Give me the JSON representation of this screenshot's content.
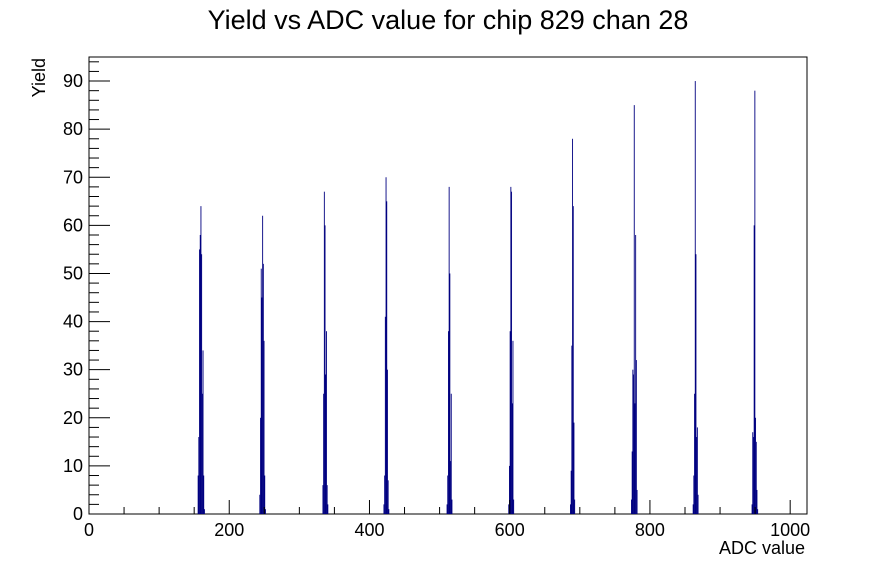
{
  "chart_data": {
    "type": "histogram",
    "title": "Yield vs ADC value for chip 829 chan 28",
    "xlabel": "ADC value",
    "ylabel": "Yield",
    "xlim": [
      0,
      1024
    ],
    "ylim": [
      0,
      95
    ],
    "x_ticks": [
      0,
      200,
      400,
      600,
      800,
      1000
    ],
    "y_ticks": [
      0,
      10,
      20,
      30,
      40,
      50,
      60,
      70,
      80,
      90
    ],
    "bar_color": "#000080",
    "bins": [
      {
        "x": 155,
        "y": 8
      },
      {
        "x": 156,
        "y": 16
      },
      {
        "x": 157,
        "y": 55
      },
      {
        "x": 158,
        "y": 58
      },
      {
        "x": 159,
        "y": 64
      },
      {
        "x": 160,
        "y": 54
      },
      {
        "x": 161,
        "y": 25
      },
      {
        "x": 162,
        "y": 34
      },
      {
        "x": 163,
        "y": 8
      },
      {
        "x": 164,
        "y": 1
      },
      {
        "x": 243,
        "y": 4
      },
      {
        "x": 244,
        "y": 20
      },
      {
        "x": 245,
        "y": 51
      },
      {
        "x": 246,
        "y": 45
      },
      {
        "x": 247,
        "y": 62
      },
      {
        "x": 248,
        "y": 52
      },
      {
        "x": 249,
        "y": 36
      },
      {
        "x": 250,
        "y": 8
      },
      {
        "x": 251,
        "y": 1
      },
      {
        "x": 333,
        "y": 6
      },
      {
        "x": 334,
        "y": 25
      },
      {
        "x": 335,
        "y": 67
      },
      {
        "x": 336,
        "y": 60
      },
      {
        "x": 337,
        "y": 29
      },
      {
        "x": 338,
        "y": 38
      },
      {
        "x": 339,
        "y": 6
      },
      {
        "x": 340,
        "y": 2
      },
      {
        "x": 420,
        "y": 2
      },
      {
        "x": 421,
        "y": 8
      },
      {
        "x": 422,
        "y": 41
      },
      {
        "x": 423,
        "y": 70
      },
      {
        "x": 424,
        "y": 65
      },
      {
        "x": 425,
        "y": 30
      },
      {
        "x": 426,
        "y": 7
      },
      {
        "x": 427,
        "y": 1
      },
      {
        "x": 510,
        "y": 2
      },
      {
        "x": 511,
        "y": 8
      },
      {
        "x": 512,
        "y": 38
      },
      {
        "x": 513,
        "y": 68
      },
      {
        "x": 514,
        "y": 50
      },
      {
        "x": 515,
        "y": 11
      },
      {
        "x": 516,
        "y": 25
      },
      {
        "x": 517,
        "y": 3
      },
      {
        "x": 598,
        "y": 2
      },
      {
        "x": 599,
        "y": 10
      },
      {
        "x": 600,
        "y": 38
      },
      {
        "x": 601,
        "y": 68
      },
      {
        "x": 602,
        "y": 67
      },
      {
        "x": 603,
        "y": 23
      },
      {
        "x": 604,
        "y": 36
      },
      {
        "x": 605,
        "y": 3
      },
      {
        "x": 686,
        "y": 2
      },
      {
        "x": 687,
        "y": 9
      },
      {
        "x": 688,
        "y": 35
      },
      {
        "x": 689,
        "y": 78
      },
      {
        "x": 690,
        "y": 64
      },
      {
        "x": 691,
        "y": 19
      },
      {
        "x": 692,
        "y": 3
      },
      {
        "x": 773,
        "y": 3
      },
      {
        "x": 774,
        "y": 13
      },
      {
        "x": 775,
        "y": 30
      },
      {
        "x": 776,
        "y": 29
      },
      {
        "x": 777,
        "y": 85
      },
      {
        "x": 778,
        "y": 23
      },
      {
        "x": 779,
        "y": 58
      },
      {
        "x": 780,
        "y": 32
      },
      {
        "x": 781,
        "y": 5
      },
      {
        "x": 861,
        "y": 2
      },
      {
        "x": 862,
        "y": 8
      },
      {
        "x": 863,
        "y": 25
      },
      {
        "x": 864,
        "y": 90
      },
      {
        "x": 865,
        "y": 54
      },
      {
        "x": 866,
        "y": 16
      },
      {
        "x": 867,
        "y": 18
      },
      {
        "x": 868,
        "y": 4
      },
      {
        "x": 945,
        "y": 2
      },
      {
        "x": 946,
        "y": 17
      },
      {
        "x": 947,
        "y": 16
      },
      {
        "x": 948,
        "y": 60
      },
      {
        "x": 949,
        "y": 88
      },
      {
        "x": 950,
        "y": 20
      },
      {
        "x": 951,
        "y": 15
      },
      {
        "x": 952,
        "y": 5
      },
      {
        "x": 953,
        "y": 1
      }
    ]
  }
}
